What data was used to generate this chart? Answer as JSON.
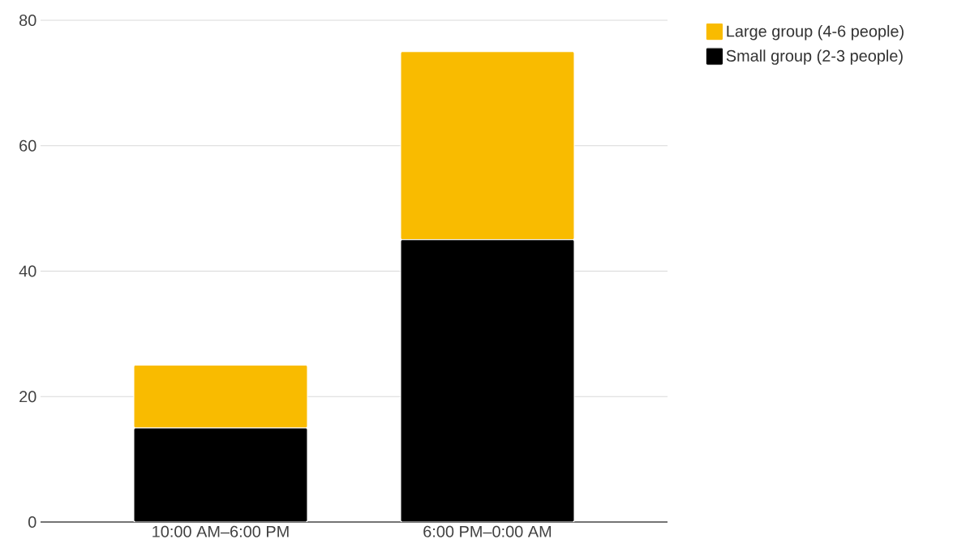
{
  "chart_data": {
    "type": "bar",
    "stacked": true,
    "categories": [
      "10:00 AM–6:00 PM",
      "6:00 PM–0:00 AM"
    ],
    "series": [
      {
        "name": "Small group (2-3 people)",
        "color": "#000000",
        "values": [
          15,
          45
        ]
      },
      {
        "name": "Large group (4-6 people)",
        "color": "#f9bb00",
        "values": [
          10,
          30
        ]
      }
    ],
    "ylim": [
      0,
      80
    ],
    "yticks": [
      0,
      20,
      40,
      60,
      80
    ],
    "grid": "y",
    "legend": "top right"
  }
}
